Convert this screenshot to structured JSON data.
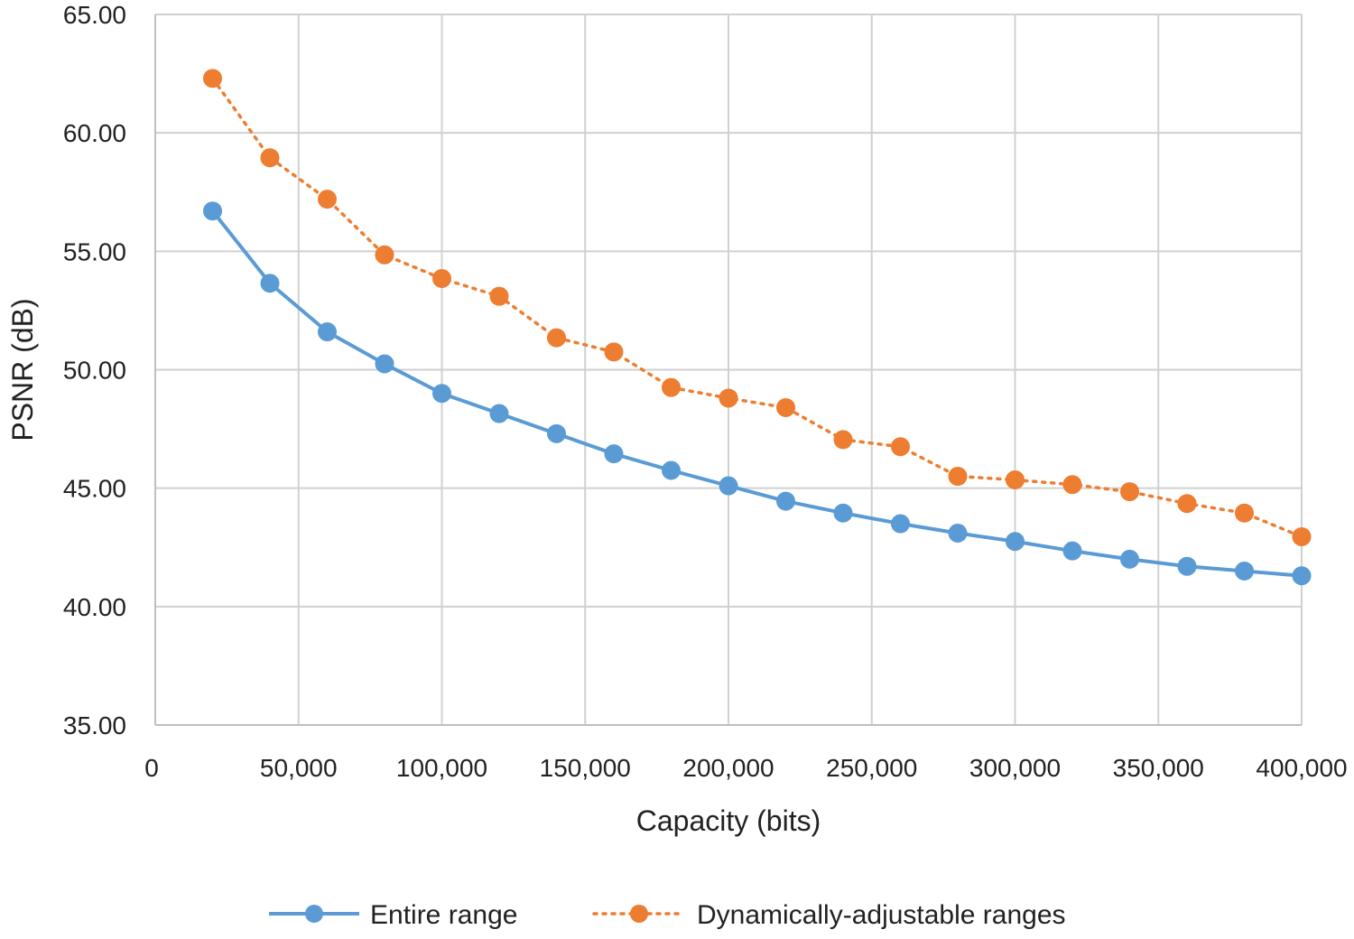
{
  "chart_data": {
    "type": "line",
    "title": "",
    "xlabel": "Capacity (bits)",
    "ylabel": "PSNR (dB)",
    "xlim": [
      0,
      400000
    ],
    "ylim": [
      35,
      65
    ],
    "x_ticks": [
      0,
      50000,
      100000,
      150000,
      200000,
      250000,
      300000,
      350000,
      400000
    ],
    "x_tick_labels": [
      "0",
      "50,000",
      "100,000",
      "150,000",
      "200,000",
      "250,000",
      "300,000",
      "350,000",
      "400,000"
    ],
    "y_ticks": [
      35,
      40,
      45,
      50,
      55,
      60,
      65
    ],
    "y_tick_labels": [
      "35.00",
      "40.00",
      "45.00",
      "50.00",
      "55.00",
      "60.00",
      "65.00"
    ],
    "x_grid_step": 50000,
    "grid": true,
    "legend_position": "bottom",
    "x": [
      20000,
      40000,
      60000,
      80000,
      100000,
      120000,
      140000,
      160000,
      180000,
      200000,
      220000,
      240000,
      260000,
      280000,
      300000,
      320000,
      340000,
      360000,
      380000,
      400000
    ],
    "series": [
      {
        "name": "Entire range",
        "color": "#5b9bd5",
        "line_style": "solid",
        "marker": "circle",
        "values": [
          56.7,
          53.65,
          51.6,
          50.25,
          49.0,
          48.15,
          47.3,
          46.45,
          45.75,
          45.1,
          44.45,
          43.95,
          43.5,
          43.1,
          42.75,
          42.35,
          42.0,
          41.7,
          41.5,
          41.3
        ]
      },
      {
        "name": "Dynamically-adjustable ranges",
        "color": "#ed7d31",
        "line_style": "dotted",
        "marker": "circle",
        "values": [
          62.3,
          58.95,
          57.2,
          54.85,
          53.85,
          53.1,
          51.35,
          50.75,
          49.25,
          48.8,
          48.4,
          47.05,
          46.75,
          45.5,
          45.35,
          45.15,
          44.85,
          44.35,
          43.95,
          42.95
        ]
      }
    ]
  }
}
